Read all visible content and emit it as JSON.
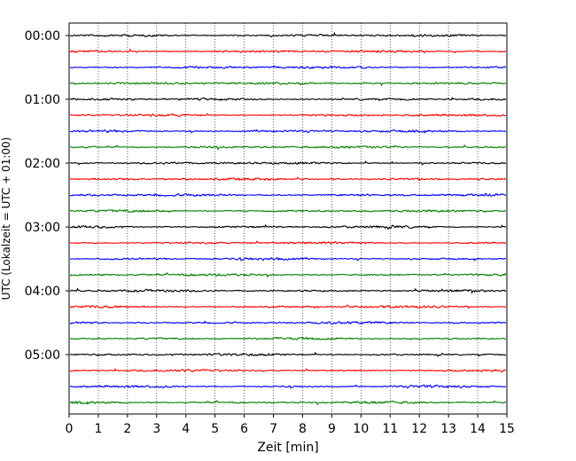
{
  "chart_data": {
    "type": "line",
    "title": "",
    "xlabel": "Zeit  [min]",
    "ylabel": "UTC (Lokalzeit = UTC + 01:00)",
    "xlim": [
      0,
      15
    ],
    "x_ticks": [
      "0",
      "1",
      "2",
      "3",
      "4",
      "5",
      "6",
      "7",
      "8",
      "9",
      "10",
      "11",
      "12",
      "13",
      "14",
      "15"
    ],
    "y_ticks": [
      "00:00",
      "01:00",
      "02:00",
      "03:00",
      "04:00",
      "05:00"
    ],
    "trace_interval_minutes": 15,
    "trace_count": 24,
    "trace_colors": [
      "#000000",
      "#ff0000",
      "#0000ff",
      "#008000"
    ],
    "vertical_grid": "dotted",
    "legend": "none"
  }
}
